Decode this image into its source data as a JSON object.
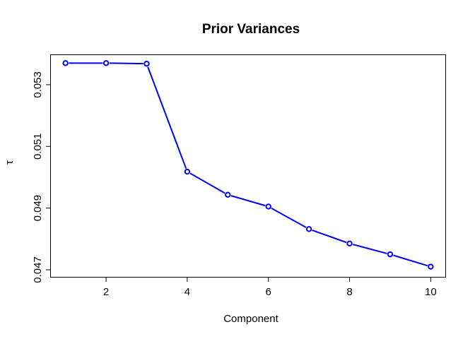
{
  "chart_data": {
    "type": "line",
    "title": "Prior Variances",
    "xlabel": "Component",
    "ylabel": "τ",
    "x": [
      1,
      2,
      3,
      4,
      5,
      6,
      7,
      8,
      9,
      10
    ],
    "series": [
      {
        "values": [
          0.0537,
          0.0537,
          0.05368,
          0.05018,
          0.04943,
          0.04905,
          0.04832,
          0.04785,
          0.0475,
          0.0471
        ],
        "color": "#0000ff"
      }
    ],
    "xlim": [
      0.64,
      10.36
    ],
    "ylim": [
      0.04677,
      0.05396
    ],
    "xticks": [
      2,
      4,
      6,
      8,
      10
    ],
    "xtick_labels": [
      "2",
      "4",
      "6",
      "8",
      "10"
    ],
    "yticks": [
      0.047,
      0.049,
      0.051,
      0.053
    ],
    "ytick_labels": [
      "0.047",
      "0.049",
      "0.051",
      "0.053"
    ],
    "marker": "open-circle",
    "grid": false,
    "legend": "none"
  }
}
